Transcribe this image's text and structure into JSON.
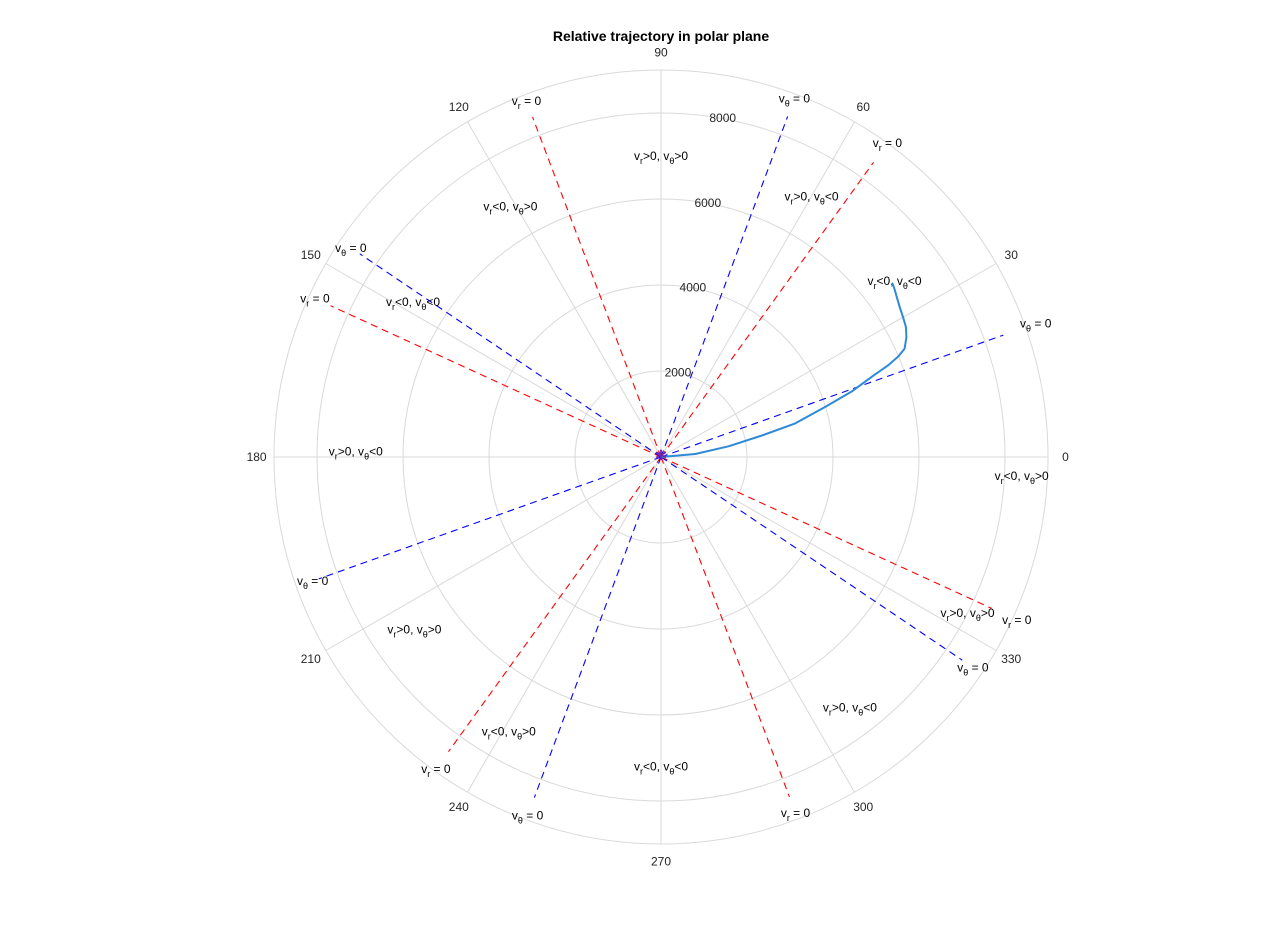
{
  "colors": {
    "grid": "#d9d9d9",
    "vr_boundary": "#ff0000",
    "vtheta_boundary": "#0000ff",
    "trajectory": "#2e8ad8",
    "origin_marker": "#7a1fa2"
  },
  "chart_data": {
    "type": "polar",
    "title": "Relative trajectory in polar plane",
    "theta_ticks_deg": [
      "0",
      "30",
      "60",
      "90",
      "120",
      "150",
      "180",
      "210",
      "240",
      "270",
      "300",
      "330"
    ],
    "r_ticks": [
      "2000",
      "4000",
      "6000",
      "8000"
    ],
    "r_max": 9000,
    "grid": true,
    "series": [
      {
        "style": "solid",
        "color": "#2e8ad8",
        "points_theta_deg_r": [
          [
            0,
            0
          ],
          [
            5,
            800
          ],
          [
            9,
            1600
          ],
          [
            12,
            2400
          ],
          [
            14,
            3200
          ],
          [
            17,
            4000
          ],
          [
            19,
            4700
          ],
          [
            21,
            5300
          ],
          [
            22,
            5700
          ],
          [
            23,
            6000
          ],
          [
            24,
            6200
          ],
          [
            26,
            6350
          ],
          [
            28,
            6450
          ],
          [
            30,
            6500
          ],
          [
            32,
            6550
          ],
          [
            34,
            6620
          ],
          [
            36,
            6700
          ],
          [
            37,
            6730
          ]
        ]
      }
    ],
    "boundary_lines": [
      {
        "kind": "vr",
        "angle_deg": 54.2,
        "r_end": 8450,
        "label_r": 9000
      },
      {
        "kind": "vr",
        "angle_deg": 110.7,
        "r_end": 8450,
        "label_r": 8850
      },
      {
        "kind": "vr",
        "angle_deg": 155.4,
        "r_end": 8450,
        "label_r": 8850
      },
      {
        "kind": "vr",
        "angle_deg": 234.2,
        "r_end": 8450,
        "label_r": 8950
      },
      {
        "kind": "vr",
        "angle_deg": 290.7,
        "r_end": 8450,
        "label_r": 8850
      },
      {
        "kind": "vr",
        "angle_deg": 335.4,
        "r_end": 8450,
        "label_r": 9100
      },
      {
        "kind": "vtheta",
        "angle_deg": 19.6,
        "r_end": 8450,
        "label_r": 9250
      },
      {
        "kind": "vtheta",
        "angle_deg": 69.6,
        "r_end": 8450,
        "label_r": 8900
      },
      {
        "kind": "vtheta",
        "angle_deg": 146.0,
        "r_end": 8450,
        "label_r": 8700
      },
      {
        "kind": "vtheta",
        "angle_deg": 199.6,
        "r_end": 8450,
        "label_r": 8600
      },
      {
        "kind": "vtheta",
        "angle_deg": 249.6,
        "r_end": 8450,
        "label_r": 8900
      },
      {
        "kind": "vtheta",
        "angle_deg": 326.0,
        "r_end": 8450,
        "label_r": 8750
      }
    ],
    "boundary_labels": {
      "vr": {
        "main": "v",
        "sub": "r",
        "rest": " = 0"
      },
      "vtheta": {
        "main": "v",
        "sub": "θ",
        "rest": " = 0"
      }
    },
    "region_labels": [
      {
        "angle_deg": 90,
        "r": 7000,
        "parts": [
          "v",
          "r",
          ">0, v",
          "θ",
          ">0"
        ]
      },
      {
        "angle_deg": 60,
        "r": 7000,
        "parts": [
          "v",
          "r",
          ">0, v",
          "θ",
          "<0"
        ]
      },
      {
        "angle_deg": 37,
        "r": 6800,
        "parts": [
          "v",
          "r",
          "<0, v",
          "θ",
          "<0"
        ]
      },
      {
        "angle_deg": 121,
        "r": 6800,
        "parts": [
          "v",
          "r",
          "<0, v",
          "θ",
          ">0"
        ]
      },
      {
        "angle_deg": 148,
        "r": 6800,
        "parts": [
          "v",
          "r",
          "<0, v",
          "θ",
          "<0"
        ]
      },
      {
        "angle_deg": 179,
        "r": 7100,
        "parts": [
          "v",
          "r",
          ">0, v",
          "θ",
          "<0"
        ]
      },
      {
        "angle_deg": 357,
        "r": 8400,
        "parts": [
          "v",
          "r",
          "<0, v",
          "θ",
          ">0"
        ]
      },
      {
        "angle_deg": 333,
        "r": 8000,
        "parts": [
          "v",
          "r",
          ">0, v",
          "θ",
          ">0"
        ]
      },
      {
        "angle_deg": 307,
        "r": 7300,
        "parts": [
          "v",
          "r",
          ">0, v",
          "θ",
          "<0"
        ]
      },
      {
        "angle_deg": 270,
        "r": 7200,
        "parts": [
          "v",
          "r",
          "<0, v",
          "θ",
          "<0"
        ]
      },
      {
        "angle_deg": 241,
        "r": 7300,
        "parts": [
          "v",
          "r",
          "<0, v",
          "θ",
          ">0"
        ]
      },
      {
        "angle_deg": 215,
        "r": 7000,
        "parts": [
          "v",
          "r",
          ">0, v",
          "θ",
          ">0"
        ]
      }
    ],
    "origin_marker": "*"
  }
}
